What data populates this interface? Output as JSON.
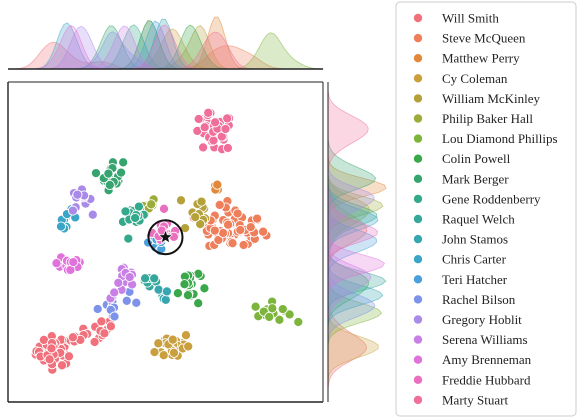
{
  "chart_data": {
    "type": "scatter",
    "title": "",
    "xlabel": "",
    "ylabel": "",
    "grid": false,
    "legend_placement": "right",
    "xlim": [
      -10,
      10
    ],
    "ylim": [
      -10,
      10
    ],
    "query_marker": {
      "x": 0.0,
      "y": 0.3,
      "symbol": "star",
      "circled": true
    },
    "series": [
      {
        "name": "Will Smith",
        "color": "#f0707b",
        "center": [
          -7.0,
          -6.8
        ],
        "spread": [
          0.6,
          0.45
        ],
        "tail": [
          [
            -5.5,
            -6.2
          ],
          [
            -4.5,
            -5.8
          ],
          [
            -3.8,
            -5.2
          ]
        ],
        "n": 70
      },
      {
        "name": "Steve McQueen",
        "color": "#ef7e5a",
        "center": [
          4.5,
          0.8
        ],
        "spread": [
          0.9,
          0.7
        ],
        "tail": [
          [
            2.6,
            1.2
          ],
          [
            3.2,
            0.4
          ]
        ],
        "n": 70
      },
      {
        "name": "Matthew Perry",
        "color": "#e2883a",
        "center": [
          3.3,
          3.6
        ],
        "spread": [
          0.15,
          0.3
        ],
        "tail": [],
        "n": 4
      },
      {
        "name": "Cy Coleman",
        "color": "#caa03e",
        "center": [
          0.5,
          -6.5
        ],
        "spread": [
          0.55,
          0.45
        ],
        "tail": [],
        "n": 30
      },
      {
        "name": "William McKinley",
        "color": "#b4a13a",
        "center": [
          2.2,
          2.2
        ],
        "spread": [
          0.35,
          0.35
        ],
        "tail": [
          [
            1.6,
            1.5
          ]
        ],
        "n": 14
      },
      {
        "name": "Philip Baker Hall",
        "color": "#9cab3a",
        "center": [
          -1.0,
          2.2
        ],
        "spread": [
          0.3,
          0.2
        ],
        "tail": [],
        "n": 8
      },
      {
        "name": "Lou Diamond Phillips",
        "color": "#7db53c",
        "center": [
          6.8,
          -4.4
        ],
        "spread": [
          0.6,
          0.3
        ],
        "tail": [],
        "n": 18
      },
      {
        "name": "Colin Powell",
        "color": "#3aa84a",
        "center": [
          1.5,
          -2.7
        ],
        "spread": [
          0.35,
          0.7
        ],
        "tail": [],
        "n": 18
      },
      {
        "name": "Mark Berger",
        "color": "#35a46f",
        "center": [
          -3.4,
          4.2
        ],
        "spread": [
          0.35,
          0.45
        ],
        "tail": [],
        "n": 22
      },
      {
        "name": "Gene Roddenberry",
        "color": "#34a88a",
        "center": [
          -2.0,
          1.4
        ],
        "spread": [
          0.35,
          0.35
        ],
        "tail": [],
        "n": 14
      },
      {
        "name": "Raquel Welch",
        "color": "#35a79b",
        "center": [
          -1.0,
          -2.4
        ],
        "spread": [
          0.3,
          0.3
        ],
        "tail": [],
        "n": 8
      },
      {
        "name": "John Stamos",
        "color": "#37a6b0",
        "center": [
          0.0,
          -3.3
        ],
        "spread": [
          0.25,
          0.25
        ],
        "tail": [],
        "n": 5
      },
      {
        "name": "Chris Carter",
        "color": "#3aa5c6",
        "center": [
          -6.3,
          1.5
        ],
        "spread": [
          0.35,
          0.25
        ],
        "tail": [],
        "n": 10
      },
      {
        "name": "Teri Hatcher",
        "color": "#4a9fdc",
        "center": [
          -0.6,
          0.0
        ],
        "spread": [
          0.35,
          0.3
        ],
        "tail": [],
        "n": 10
      },
      {
        "name": "Rachel Bilson",
        "color": "#7d93ea",
        "center": [
          -3.5,
          -4.1
        ],
        "spread": [
          0.5,
          0.3
        ],
        "tail": [
          [
            -2.5,
            -3.7
          ]
        ],
        "n": 12
      },
      {
        "name": "Gregory Hoblit",
        "color": "#a98ae8",
        "center": [
          -5.4,
          2.6
        ],
        "spread": [
          0.35,
          0.35
        ],
        "tail": [],
        "n": 12
      },
      {
        "name": "Serena Williams",
        "color": "#c880e6",
        "center": [
          -2.6,
          -2.5
        ],
        "spread": [
          0.45,
          0.55
        ],
        "tail": [],
        "n": 14
      },
      {
        "name": "Amy Brenneman",
        "color": "#e072dc",
        "center": [
          -6.0,
          -1.3
        ],
        "spread": [
          0.45,
          0.4
        ],
        "tail": [],
        "n": 20
      },
      {
        "name": "Freddie Hubbard",
        "color": "#ea6fbe",
        "center": [
          0.1,
          0.6
        ],
        "spread": [
          0.45,
          0.45
        ],
        "tail": [],
        "n": 16
      },
      {
        "name": "Marty Stuart",
        "color": "#ef6f9a",
        "center": [
          3.0,
          6.8
        ],
        "spread": [
          0.65,
          0.6
        ],
        "tail": [],
        "n": 42
      }
    ]
  }
}
